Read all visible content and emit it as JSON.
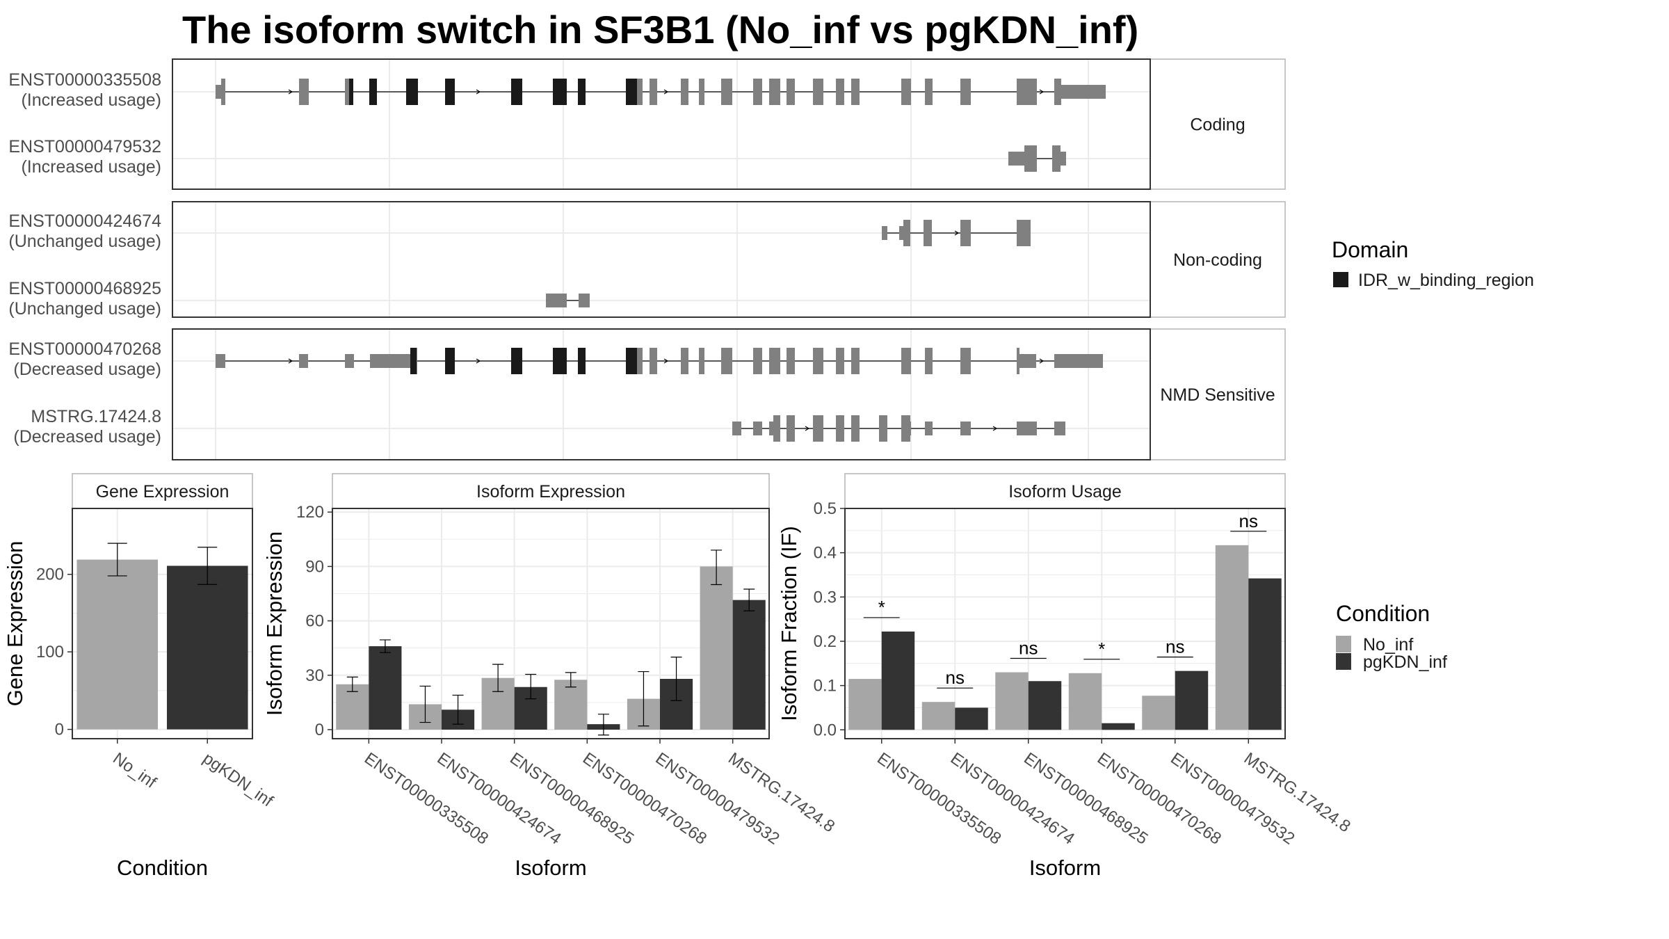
{
  "colors": {
    "domain": "#1a1a1a",
    "exon": "#808080",
    "no_inf": "#a6a6a6",
    "pgkdn_inf": "#333333",
    "grid": "#ebebeb",
    "panel_border": "#333333",
    "strip_border": "#b3b3b3"
  },
  "chart_data": {
    "title": "The isoform switch in SF3B1 (No_inf vs pgKDN_inf)",
    "transcript_structure": {
      "type": "gene-structure",
      "groups": [
        {
          "label": "Coding",
          "transcripts": [
            {
              "id": "ENST00000335508",
              "usage": "(Increased usage)"
            },
            {
              "id": "ENST00000479532",
              "usage": "(Increased usage)"
            }
          ]
        },
        {
          "label": "Non-coding",
          "transcripts": [
            {
              "id": "ENST00000424674",
              "usage": "(Unchanged usage)"
            },
            {
              "id": "ENST00000468925",
              "usage": "(Unchanged usage)"
            }
          ]
        },
        {
          "label": "NMD Sensitive",
          "transcripts": [
            {
              "id": "ENST00000470268",
              "usage": "(Decreased usage)"
            },
            {
              "id": "MSTRG.17424.8",
              "usage": "(Decreased usage)"
            }
          ]
        }
      ],
      "legend": {
        "title": "Domain",
        "items": [
          "IDR_w_binding_region"
        ]
      }
    },
    "gene_expression": {
      "type": "bar",
      "panel_title": "Gene Expression",
      "xlabel": "Condition",
      "ylabel": "Gene Expression",
      "categories": [
        "No_inf",
        "pgKDN_inf"
      ],
      "values": [
        219,
        211
      ],
      "error_low": [
        198,
        187
      ],
      "error_high": [
        240,
        235
      ],
      "ylim": [
        -12,
        285
      ],
      "yticks": [
        0,
        100,
        200
      ]
    },
    "isoform_expression": {
      "type": "bar",
      "panel_title": "Isoform Expression",
      "xlabel": "Isoform",
      "ylabel": "Isoform Expression",
      "categories": [
        "ENST00000335508",
        "ENST00000424674",
        "ENST00000468925",
        "ENST00000470268",
        "ENST00000479532",
        "MSTRG.17424.8"
      ],
      "series": [
        {
          "name": "No_inf",
          "values": [
            25,
            14,
            28.5,
            27.5,
            17,
            90
          ],
          "error_low": [
            21,
            4,
            21,
            23.5,
            2,
            80
          ],
          "error_high": [
            29,
            24,
            36,
            31.5,
            32,
            99
          ]
        },
        {
          "name": "pgKDN_inf",
          "values": [
            46,
            11,
            23.5,
            3,
            28,
            71.5
          ],
          "error_low": [
            42.5,
            3,
            17,
            -3,
            16,
            65.5
          ],
          "error_high": [
            49.5,
            19,
            30.5,
            8.5,
            40,
            77.5
          ]
        }
      ],
      "ylim": [
        -5,
        122
      ],
      "yticks": [
        0,
        30,
        60,
        90,
        120
      ]
    },
    "isoform_usage": {
      "type": "bar",
      "panel_title": "Isoform Usage",
      "xlabel": "Isoform",
      "ylabel": "Isoform Fraction (IF)",
      "categories": [
        "ENST00000335508",
        "ENST00000424674",
        "ENST00000468925",
        "ENST00000470268",
        "ENST00000479532",
        "MSTRG.17424.8"
      ],
      "series": [
        {
          "name": "No_inf",
          "values": [
            0.115,
            0.063,
            0.13,
            0.128,
            0.077,
            0.417
          ]
        },
        {
          "name": "pgKDN_inf",
          "values": [
            0.222,
            0.05,
            0.11,
            0.015,
            0.133,
            0.342
          ]
        }
      ],
      "significance": [
        "*",
        "ns",
        "ns",
        "*",
        "ns",
        "ns"
      ],
      "ylim": [
        -0.02,
        0.5
      ],
      "yticks": [
        0.0,
        0.1,
        0.2,
        0.3,
        0.4,
        0.5
      ]
    },
    "condition_legend": {
      "title": "Condition",
      "items": [
        "No_inf",
        "pgKDN_inf"
      ]
    }
  }
}
